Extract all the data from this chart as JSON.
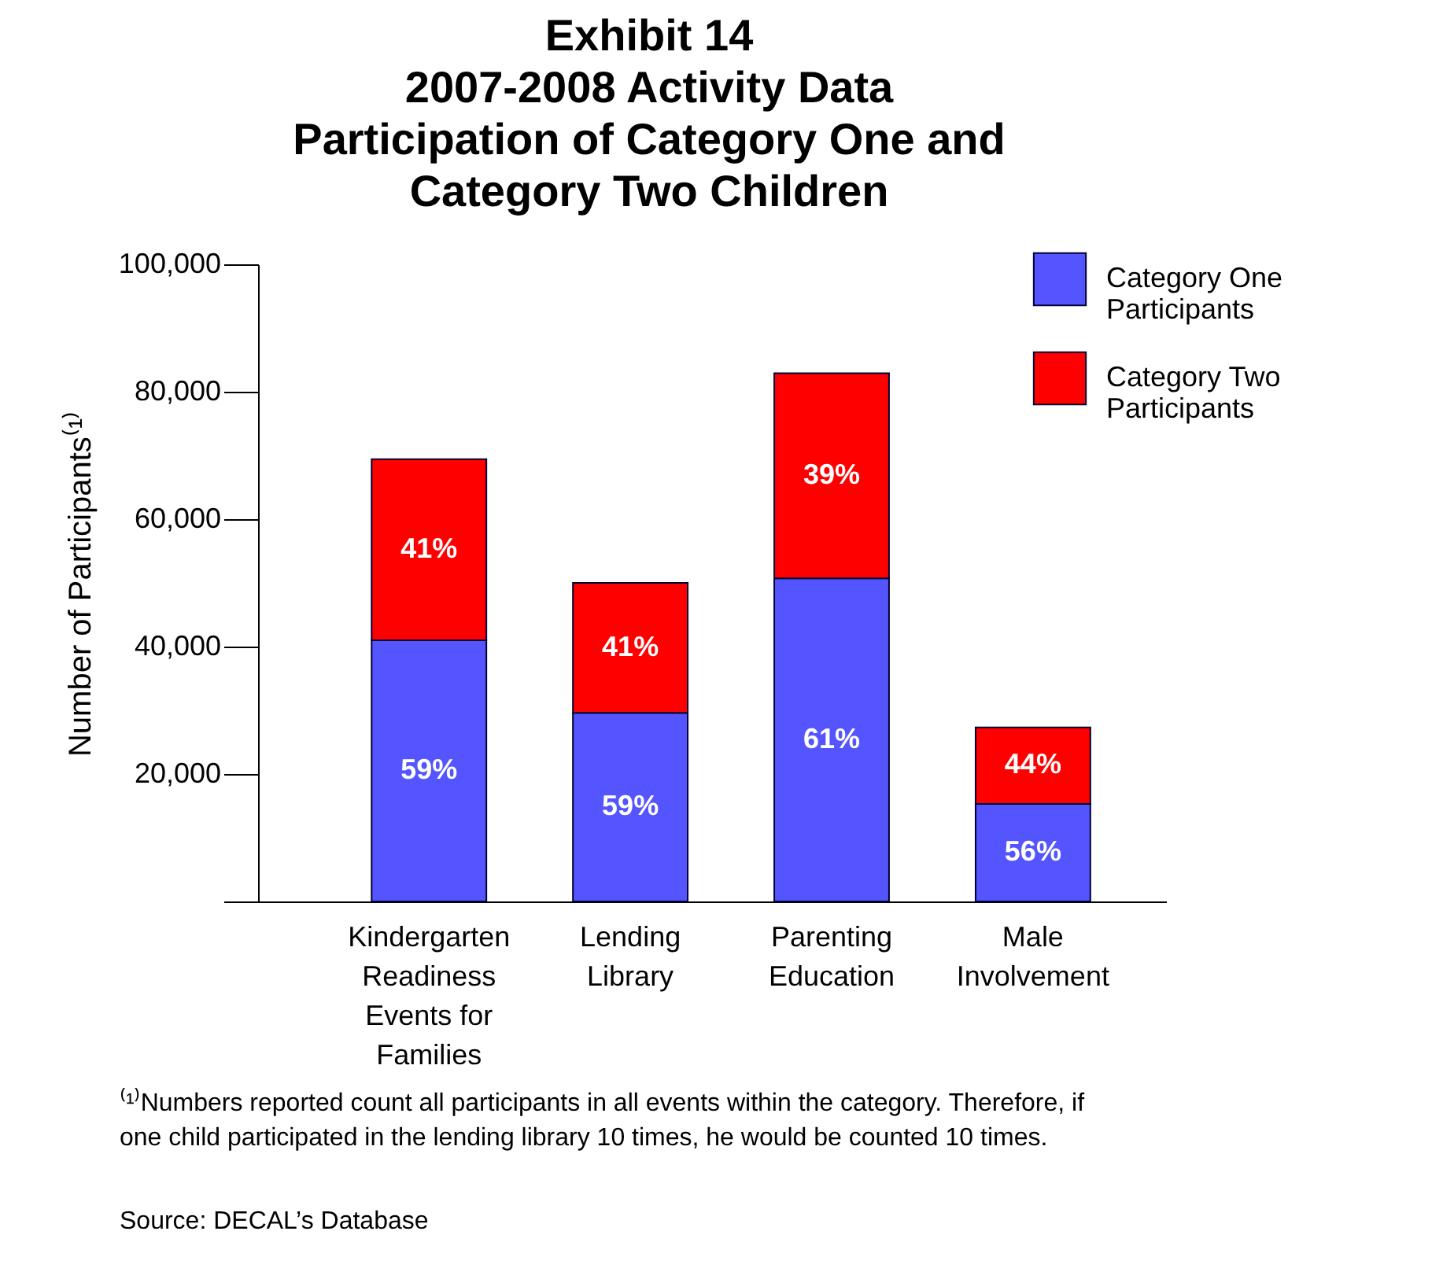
{
  "chart_data": {
    "type": "bar",
    "stacked": true,
    "title": [
      "Exhibit 14",
      "2007-2008 Activity Data",
      "Participation of Category One and",
      "Category Two Children"
    ],
    "ylabel": "Number of Participants⁽¹⁾",
    "categories": [
      "Kindergarten Readiness Events for Families",
      "Lending Library",
      "Parenting Education",
      "Male Involvement"
    ],
    "series": [
      {
        "name": "Category One Participants",
        "color": "#5555ff",
        "values": [
          41000,
          29600,
          50700,
          15300
        ]
      },
      {
        "name": "Category Two Participants",
        "color": "#ff0000",
        "values": [
          28400,
          20400,
          32200,
          12000
        ]
      }
    ],
    "ylim": [
      0,
      100000
    ],
    "yticks": [
      {
        "value": 0,
        "label": null
      },
      {
        "value": 20000,
        "label": "20,000"
      },
      {
        "value": 40000,
        "label": "40,000"
      },
      {
        "value": 60000,
        "label": "60,000"
      },
      {
        "value": 80000,
        "label": "80,000"
      },
      {
        "value": 100000,
        "label": "100,000"
      }
    ],
    "grid": false,
    "legend": "top right",
    "annotations": [
      "59%",
      "59%",
      "61%",
      "56%",
      "41%",
      "41%",
      "39%",
      "44%",
      "⁽¹⁾Numbers reported count all participants in all events within the category.  Therefore, if one child participated in the lending library 10 times, he would be counted 10 times.",
      "Source: DECAL’s Database"
    ]
  }
}
